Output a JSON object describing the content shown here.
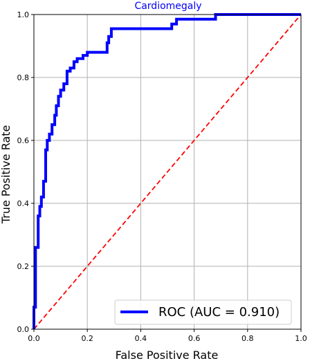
{
  "chart_data": {
    "type": "line",
    "title": "Cardiomegaly",
    "xlabel": "False Positive Rate",
    "ylabel": "True Positive Rate",
    "xlim": [
      0.0,
      1.0
    ],
    "ylim": [
      0.0,
      1.0
    ],
    "xticks": [
      "0.0",
      "0.2",
      "0.4",
      "0.6",
      "0.8",
      "1.0"
    ],
    "yticks": [
      "0.0",
      "0.2",
      "0.4",
      "0.6",
      "0.8",
      "1.0"
    ],
    "grid": true,
    "legend_position": "lower-right",
    "series": [
      {
        "name": "ROC (AUC = 0.910)",
        "color": "#0000ff",
        "style": "solid",
        "x": [
          0.0,
          0.0,
          0.006,
          0.006,
          0.016,
          0.016,
          0.022,
          0.022,
          0.028,
          0.028,
          0.036,
          0.036,
          0.044,
          0.044,
          0.05,
          0.05,
          0.058,
          0.058,
          0.068,
          0.068,
          0.078,
          0.078,
          0.084,
          0.084,
          0.092,
          0.092,
          0.1,
          0.1,
          0.112,
          0.112,
          0.124,
          0.124,
          0.136,
          0.136,
          0.15,
          0.15,
          0.162,
          0.162,
          0.184,
          0.184,
          0.2,
          0.2,
          0.274,
          0.274,
          0.28,
          0.28,
          0.29,
          0.29,
          0.516,
          0.516,
          0.534,
          0.534,
          0.68,
          0.68,
          1.0
        ],
        "y": [
          0.0,
          0.07,
          0.07,
          0.26,
          0.26,
          0.36,
          0.36,
          0.39,
          0.39,
          0.42,
          0.42,
          0.47,
          0.47,
          0.57,
          0.57,
          0.6,
          0.6,
          0.62,
          0.62,
          0.65,
          0.65,
          0.68,
          0.68,
          0.71,
          0.71,
          0.74,
          0.74,
          0.76,
          0.76,
          0.78,
          0.78,
          0.82,
          0.82,
          0.83,
          0.83,
          0.85,
          0.85,
          0.86,
          0.86,
          0.87,
          0.87,
          0.88,
          0.88,
          0.91,
          0.91,
          0.93,
          0.93,
          0.955,
          0.955,
          0.97,
          0.97,
          0.985,
          0.985,
          1.0,
          1.0
        ]
      },
      {
        "name": "",
        "color": "#ff0000",
        "style": "dashed",
        "x": [
          0.0,
          1.0
        ],
        "y": [
          0.0,
          1.0
        ]
      }
    ]
  }
}
